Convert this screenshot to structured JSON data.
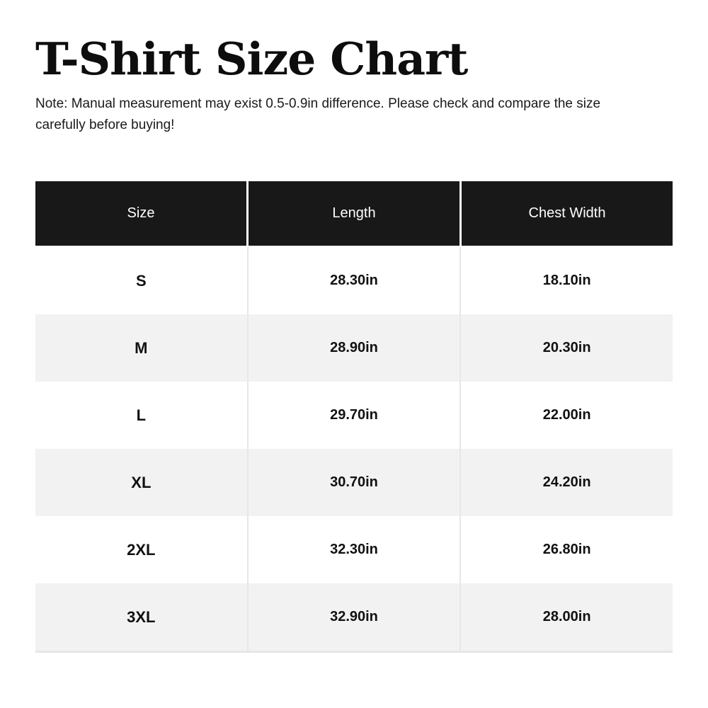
{
  "page": {
    "title": "T-Shirt Size Chart"
  },
  "note": {
    "line1": "Note: Manual measurement may exist 0.5-0.9in difference. Please check and compare the size",
    "line2": "carefully before buying!"
  },
  "table": {
    "headers": [
      "Size",
      "Length",
      "Chest Width"
    ],
    "rows": [
      {
        "size": "S",
        "length": "28.30in",
        "chest_width": "18.10in"
      },
      {
        "size": "M",
        "length": "28.90in",
        "chest_width": "20.30in"
      },
      {
        "size": "L",
        "length": "29.70in",
        "chest_width": "22.00in"
      },
      {
        "size": "XL",
        "length": "30.70in",
        "chest_width": "24.20in"
      },
      {
        "size": "2XL",
        "length": "32.30in",
        "chest_width": "26.80in"
      },
      {
        "size": "3XL",
        "length": "32.90in",
        "chest_width": "28.00in"
      }
    ]
  },
  "colors": {
    "header_bg": "#181818",
    "header_text": "#ffffff",
    "row_bg": "#ffffff",
    "row_alt_bg": "#f2f2f2",
    "column_separator": "#e7e7e7",
    "table_bottom_border": "#e6e6e6",
    "title_text": "#0d0d0d",
    "note_text": "#1a1a1a"
  }
}
